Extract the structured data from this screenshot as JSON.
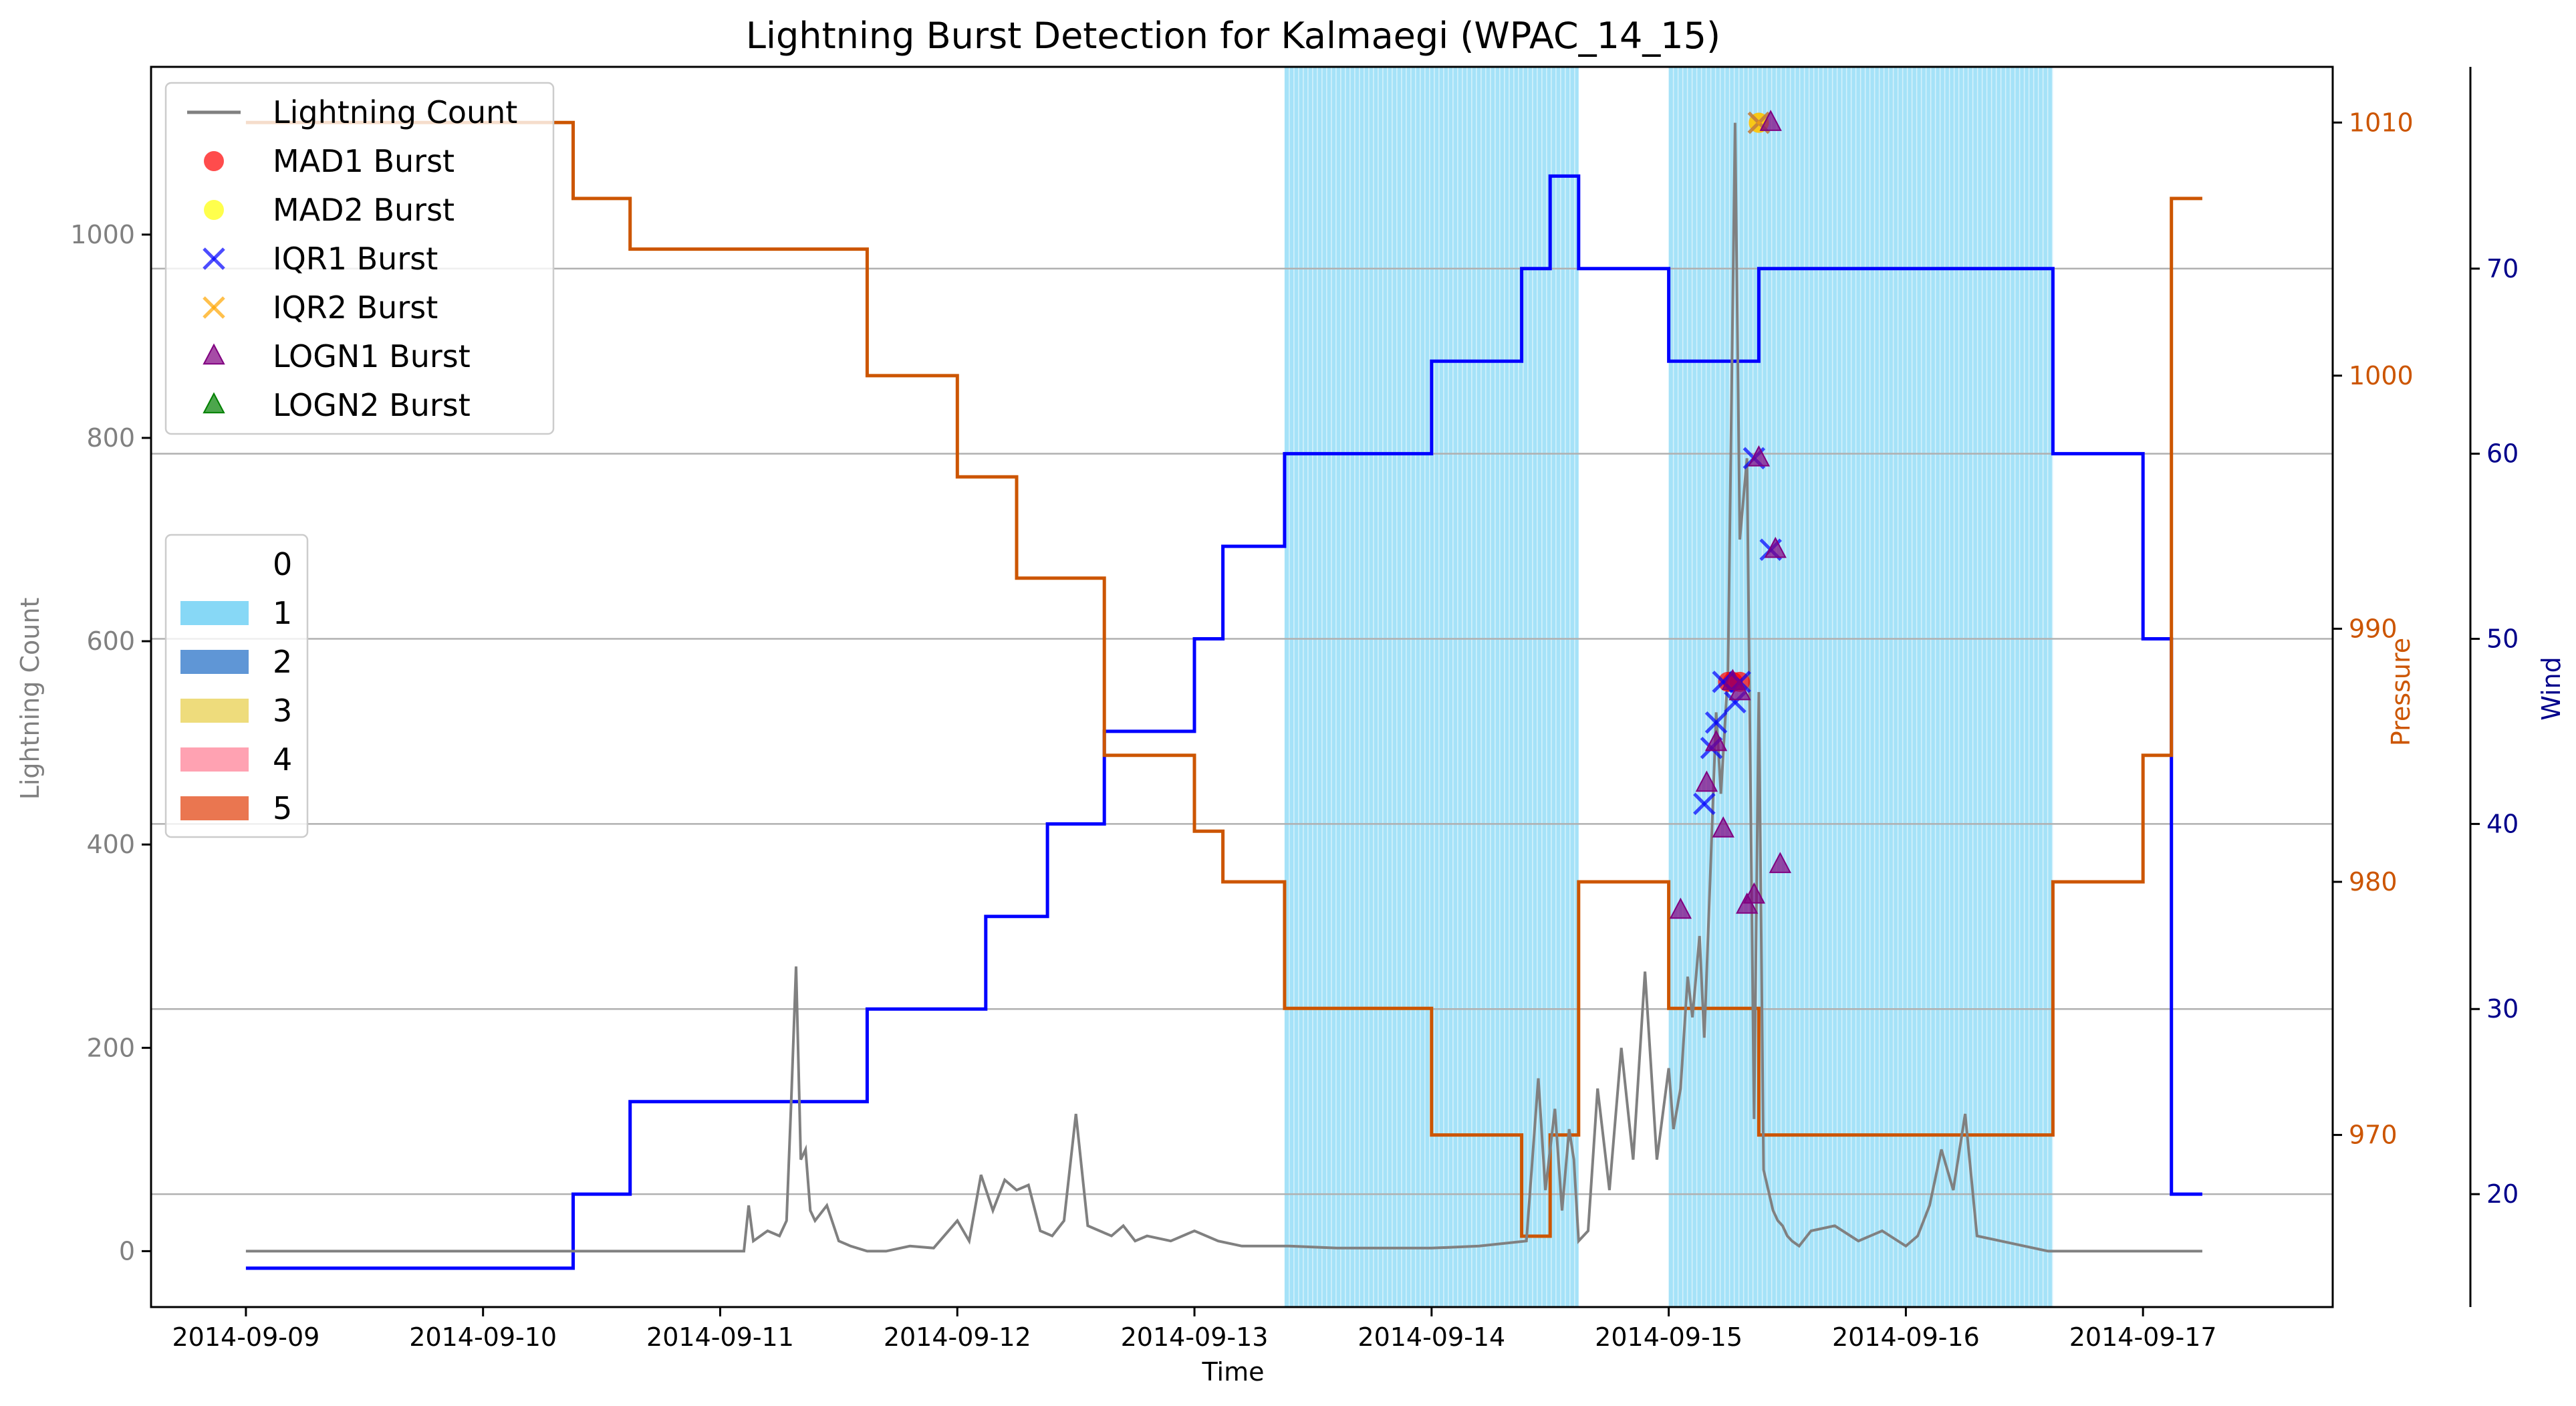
{
  "chart_data": {
    "type": "line",
    "title": "Lightning Burst Detection for Kalmaegi (WPAC_14_15)",
    "xlabel": "Time",
    "ylabel_left": "Lightning Count",
    "ylabel_pressure": "Pressure",
    "ylabel_wind": "Wind",
    "x_range": [
      -0.4,
      8.8
    ],
    "x_ticks": [
      {
        "value": 0,
        "label": "2014-09-09"
      },
      {
        "value": 1,
        "label": "2014-09-10"
      },
      {
        "value": 2,
        "label": "2014-09-11"
      },
      {
        "value": 3,
        "label": "2014-09-12"
      },
      {
        "value": 4,
        "label": "2014-09-13"
      },
      {
        "value": 5,
        "label": "2014-09-14"
      },
      {
        "value": 6,
        "label": "2014-09-15"
      },
      {
        "value": 7,
        "label": "2014-09-16"
      },
      {
        "value": 8,
        "label": "2014-09-17"
      }
    ],
    "left_axis": {
      "range": [
        -55,
        1165
      ],
      "ticks": [
        0,
        200,
        400,
        600,
        800,
        1000
      ],
      "color": "#808080"
    },
    "pressure_axis": {
      "range": [
        963.2,
        1012.2
      ],
      "ticks": [
        970,
        980,
        990,
        1000,
        1010
      ],
      "color": "#cc5500"
    },
    "wind_axis": {
      "range": [
        13.9,
        80.9
      ],
      "ticks": [
        20,
        30,
        40,
        50,
        60,
        70
      ],
      "color": "#00008b"
    },
    "grid_horizontal": true,
    "category_shading": [
      {
        "category": "1",
        "start": 4.38,
        "end": 5.62
      },
      {
        "category": "1",
        "start": 6.0,
        "end": 7.62
      }
    ],
    "series": [
      {
        "name": "Wind",
        "color": "#0000ff",
        "axis": "wind",
        "x": [
          0,
          1.38,
          1.38,
          1.62,
          1.62,
          2.62,
          2.62,
          3.12,
          3.12,
          3.38,
          3.38,
          3.62,
          3.62,
          4.0,
          4.0,
          4.12,
          4.12,
          4.38,
          4.38,
          5.0,
          5.0,
          5.38,
          5.38,
          5.5,
          5.5,
          5.62,
          5.62,
          6.0,
          6.0,
          6.38,
          6.38,
          7.62,
          7.62,
          8.0,
          8.0,
          8.12,
          8.12,
          8.25
        ],
        "values": [
          16,
          16,
          20,
          20,
          25,
          25,
          30,
          30,
          35,
          35,
          40,
          40,
          45,
          45,
          50,
          50,
          55,
          55,
          60,
          60,
          65,
          65,
          70,
          70,
          75,
          75,
          70,
          70,
          65,
          65,
          70,
          70,
          60,
          60,
          50,
          50,
          20,
          20
        ]
      },
      {
        "name": "Pressure",
        "color": "#cc5500",
        "axis": "pressure",
        "x": [
          0,
          1.38,
          1.38,
          1.62,
          1.62,
          2.62,
          2.62,
          3.0,
          3.0,
          3.25,
          3.25,
          3.62,
          3.62,
          4.0,
          4.0,
          4.12,
          4.12,
          4.38,
          4.38,
          5.0,
          5.0,
          5.38,
          5.38,
          5.5,
          5.5,
          5.62,
          5.62,
          6.0,
          6.0,
          6.38,
          6.38,
          7.62,
          7.62,
          8.0,
          8.0,
          8.12,
          8.12,
          8.25
        ],
        "values": [
          1010,
          1010,
          1007,
          1007,
          1005,
          1005,
          1000,
          1000,
          996,
          996,
          992,
          992,
          985,
          985,
          982,
          982,
          980,
          980,
          975,
          975,
          970,
          970,
          966,
          966,
          970,
          970,
          980,
          980,
          975,
          975,
          970,
          970,
          980,
          980,
          985,
          985,
          1007,
          1007
        ]
      },
      {
        "name": "Lightning Count",
        "color": "#808080",
        "axis": "left",
        "x": [
          0,
          2.1,
          2.12,
          2.14,
          2.2,
          2.25,
          2.28,
          2.3,
          2.32,
          2.34,
          2.36,
          2.38,
          2.4,
          2.45,
          2.5,
          2.55,
          2.62,
          2.7,
          2.8,
          2.9,
          3.0,
          3.05,
          3.1,
          3.15,
          3.2,
          3.25,
          3.3,
          3.35,
          3.4,
          3.45,
          3.5,
          3.55,
          3.6,
          3.65,
          3.7,
          3.75,
          3.8,
          3.9,
          4.0,
          4.1,
          4.2,
          4.3,
          4.4,
          4.6,
          4.8,
          5.0,
          5.2,
          5.4,
          5.45,
          5.48,
          5.5,
          5.52,
          5.55,
          5.58,
          5.6,
          5.62,
          5.66,
          5.7,
          5.75,
          5.8,
          5.85,
          5.9,
          5.95,
          6.0,
          6.02,
          6.05,
          6.08,
          6.1,
          6.13,
          6.15,
          6.18,
          6.2,
          6.22,
          6.25,
          6.28,
          6.3,
          6.33,
          6.36,
          6.38,
          6.4,
          6.42,
          6.44,
          6.46,
          6.48,
          6.5,
          6.52,
          6.55,
          6.6,
          6.7,
          6.8,
          6.9,
          7.0,
          7.05,
          7.1,
          7.15,
          7.2,
          7.25,
          7.3,
          7.4,
          7.5,
          7.6,
          7.8,
          8.0,
          8.25
        ],
        "values": [
          0,
          0,
          45,
          10,
          20,
          15,
          30,
          150,
          280,
          90,
          100,
          40,
          30,
          45,
          10,
          5,
          0,
          0,
          5,
          3,
          30,
          10,
          75,
          40,
          70,
          60,
          65,
          20,
          15,
          30,
          135,
          25,
          20,
          15,
          25,
          10,
          15,
          10,
          20,
          10,
          5,
          5,
          5,
          3,
          3,
          3,
          5,
          10,
          170,
          60,
          100,
          140,
          40,
          120,
          90,
          10,
          20,
          160,
          60,
          200,
          90,
          275,
          90,
          180,
          120,
          160,
          270,
          230,
          310,
          210,
          400,
          530,
          450,
          570,
          1110,
          700,
          780,
          130,
          550,
          80,
          60,
          40,
          30,
          25,
          15,
          10,
          5,
          20,
          25,
          10,
          20,
          5,
          15,
          45,
          100,
          60,
          135,
          15,
          10,
          5,
          0,
          0,
          0,
          0
        ]
      }
    ],
    "bursts": [
      {
        "name": "MAD1 Burst",
        "marker": "circle",
        "color": "#ff0000",
        "x": [
          6.25,
          6.27,
          6.3,
          6.38
        ],
        "values": [
          560,
          560,
          560,
          1110
        ]
      },
      {
        "name": "MAD2 Burst",
        "marker": "circle",
        "color": "#ffff00",
        "x": [
          6.38
        ],
        "values": [
          1110
        ]
      },
      {
        "name": "IQR1 Burst",
        "marker": "x",
        "color": "#0000ff",
        "x": [
          6.15,
          6.18,
          6.2,
          6.23,
          6.28,
          6.3,
          6.36,
          6.38,
          6.43
        ],
        "values": [
          440,
          495,
          520,
          560,
          540,
          560,
          780,
          1110,
          690
        ]
      },
      {
        "name": "IQR2 Burst",
        "marker": "x",
        "color": "#ffa500",
        "x": [
          6.38
        ],
        "values": [
          1110
        ]
      },
      {
        "name": "LOGN1 Burst",
        "marker": "triangle",
        "color": "#800080",
        "x": [
          6.05,
          6.16,
          6.2,
          6.23,
          6.27,
          6.3,
          6.33,
          6.36,
          6.38,
          6.43,
          6.45,
          6.47
        ],
        "values": [
          335,
          460,
          500,
          415,
          560,
          550,
          340,
          350,
          780,
          1110,
          690,
          380
        ]
      },
      {
        "name": "LOGN2 Burst",
        "marker": "triangle",
        "color": "#008000",
        "x": [],
        "values": []
      }
    ],
    "legend_top": [
      {
        "label": "Lightning Count",
        "type": "line",
        "color": "#808080"
      },
      {
        "label": "MAD1 Burst",
        "type": "circle",
        "color": "#ff0000"
      },
      {
        "label": "MAD2 Burst",
        "type": "circle",
        "color": "#ffff00"
      },
      {
        "label": "IQR1 Burst",
        "type": "x",
        "color": "#0000ff"
      },
      {
        "label": "IQR2 Burst",
        "type": "x",
        "color": "#ffa500"
      },
      {
        "label": "LOGN1 Burst",
        "type": "triangle",
        "color": "#800080"
      },
      {
        "label": "LOGN2 Burst",
        "type": "triangle",
        "color": "#008000"
      }
    ],
    "legend_top_position": "top-left",
    "legend_categories": [
      {
        "label": "0",
        "color": "#ffffff"
      },
      {
        "label": "1",
        "color": "#87d8f6"
      },
      {
        "label": "2",
        "color": "#5f96d6"
      },
      {
        "label": "3",
        "color": "#eedc7c"
      },
      {
        "label": "4",
        "color": "#ffa2b2"
      },
      {
        "label": "5",
        "color": "#ea7650"
      }
    ],
    "legend_categories_position": "center-left"
  }
}
